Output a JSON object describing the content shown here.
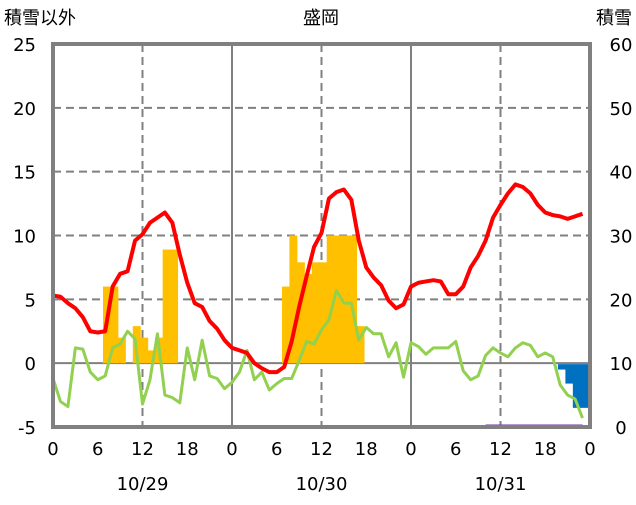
{
  "chart_data": {
    "type": "bar+line",
    "title": "盛岡",
    "left_axis_label": "積雪以外",
    "right_axis_label": "積雪",
    "ylim_left": [
      -5,
      25
    ],
    "ylim_right": [
      0,
      60
    ],
    "yticks_left": [
      "25",
      "20",
      "15",
      "10",
      "5",
      "0",
      "-5"
    ],
    "yticks_right": [
      "60",
      "50",
      "40",
      "30",
      "20",
      "10",
      "0"
    ],
    "xticks": [
      "0",
      "6",
      "12",
      "18",
      "0",
      "6",
      "12",
      "18",
      "0",
      "6",
      "12",
      "18",
      "0"
    ],
    "dates": [
      "10/29",
      "10/30",
      "10/31"
    ],
    "hours": 72,
    "colors": {
      "temperature": "#ff0000",
      "green_series": "#92d050",
      "precipitation": "#ffc000",
      "snowfall": "#0070c0",
      "snow_depth": "#7030a0",
      "grid": "#808080"
    },
    "temperature": [
      5.3,
      5.2,
      4.7,
      4.3,
      3.6,
      2.5,
      2.4,
      2.5,
      6.0,
      7.0,
      7.2,
      9.6,
      10.1,
      11.0,
      11.4,
      11.8,
      11.0,
      8.5,
      6.3,
      4.7,
      4.4,
      3.3,
      2.7,
      1.8,
      1.2,
      1.0,
      0.8,
      0.0,
      -0.4,
      -0.7,
      -0.7,
      -0.3,
      1.7,
      4.4,
      6.8,
      9.1,
      10.2,
      12.9,
      13.4,
      13.6,
      12.8,
      9.6,
      7.5,
      6.7,
      6.1,
      4.9,
      4.3,
      4.6,
      6.0,
      6.3,
      6.4,
      6.5,
      6.4,
      5.4,
      5.4,
      6.0,
      7.5,
      8.4,
      9.6,
      11.4,
      12.4,
      13.3,
      14.0,
      13.8,
      13.3,
      12.4,
      11.8,
      11.6,
      11.5,
      11.3,
      11.5,
      11.7
    ],
    "green_series": [
      -1.2,
      -3.0,
      -3.4,
      1.2,
      1.1,
      -0.7,
      -1.3,
      -1.0,
      1.2,
      1.5,
      2.5,
      1.9,
      -3.2,
      -1.3,
      2.3,
      -2.5,
      -2.7,
      -3.1,
      1.2,
      -1.3,
      1.8,
      -1.0,
      -1.2,
      -2.0,
      -1.5,
      -0.7,
      1.0,
      -1.3,
      -0.7,
      -2.1,
      -1.6,
      -1.2,
      -1.2,
      0.2,
      1.7,
      1.5,
      2.6,
      3.4,
      5.7,
      4.7,
      4.7,
      1.8,
      2.8,
      2.3,
      2.3,
      0.5,
      1.6,
      -1.1,
      1.6,
      1.3,
      0.7,
      1.2,
      1.2,
      1.2,
      1.7,
      -0.6,
      -1.3,
      -1.0,
      0.6,
      1.2,
      0.8,
      0.5,
      1.2,
      1.6,
      1.4,
      0.5,
      0.8,
      0.5,
      -1.7,
      -2.5,
      -2.8,
      -4.3
    ],
    "precipitation": [
      {
        "hour": 7,
        "value": 6.0
      },
      {
        "hour": 8,
        "value": 6.0
      },
      {
        "hour": 9,
        "value": 2.0
      },
      {
        "hour": 11,
        "value": 2.9
      },
      {
        "hour": 12,
        "value": 2.0
      },
      {
        "hour": 13,
        "value": 1.0
      },
      {
        "hour": 14,
        "value": 2.0
      },
      {
        "hour": 15,
        "value": 8.9
      },
      {
        "hour": 16,
        "value": 8.9
      },
      {
        "hour": 31,
        "value": 6.0
      },
      {
        "hour": 32,
        "value": 10.0
      },
      {
        "hour": 33,
        "value": 7.9
      },
      {
        "hour": 34,
        "value": 7.0
      },
      {
        "hour": 35,
        "value": 7.9
      },
      {
        "hour": 36,
        "value": 7.9
      },
      {
        "hour": 37,
        "value": 10.0
      },
      {
        "hour": 38,
        "value": 10.0
      },
      {
        "hour": 39,
        "value": 10.0
      },
      {
        "hour": 40,
        "value": 10.0
      },
      {
        "hour": 41,
        "value": 2.9
      }
    ],
    "snowfall_downward": [
      {
        "hour": 68,
        "value": 0.5
      },
      {
        "hour": 69,
        "value": 1.6
      },
      {
        "hour": 70,
        "value": 3.5
      },
      {
        "hour": 71,
        "value": 3.5
      }
    ],
    "snow_depth": {
      "from_hour": 58,
      "to_hour": 71,
      "value": 0
    }
  }
}
